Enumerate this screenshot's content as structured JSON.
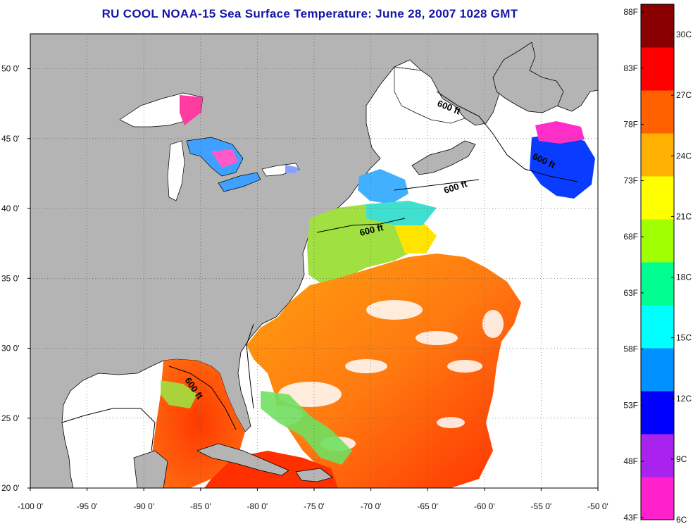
{
  "title": "RU COOL  NOAA-15  Sea Surface Temperature:  June 28, 2007 1028 GMT",
  "map": {
    "lat_labels": [
      "50 0'",
      "45 0'",
      "40 0'",
      "35 0'",
      "30 0'",
      "25 0'",
      "20 0'"
    ],
    "lon_labels": [
      "-100 0'",
      "-95 0'",
      "-90 0'",
      "-85 0'",
      "-80 0'",
      "-75 0'",
      "-70 0'",
      "-65 0'",
      "-60 0'",
      "-55 0'",
      "-50 0'"
    ],
    "lat_range": [
      20,
      52.5
    ],
    "lon_range": [
      -100,
      -50
    ],
    "contour_labels": [
      "600 ft",
      "600 ft",
      "600 ft",
      "600 ft",
      "600 ft"
    ],
    "colors": {
      "land": "#b4b4b4",
      "no_data": "#ffffff",
      "coastline": "#000000",
      "grid": "#555555"
    }
  },
  "colorbar": {
    "fahrenheit_labels": [
      "88F",
      "83F",
      "78F",
      "73F",
      "68F",
      "63F",
      "58F",
      "53F",
      "48F",
      "43F"
    ],
    "celsius_labels": [
      "30C",
      "27C",
      "24C",
      "21C",
      "18C",
      "15C",
      "12C",
      "9C",
      "6C"
    ],
    "range_c": [
      6,
      31.5
    ],
    "colors": [
      "#ff22cc",
      "#aa22ee",
      "#0000ff",
      "#0090ff",
      "#00ffff",
      "#00ff90",
      "#a0ff00",
      "#ffff00",
      "#ffb000",
      "#ff6000",
      "#ff0000",
      "#8a0000"
    ]
  }
}
